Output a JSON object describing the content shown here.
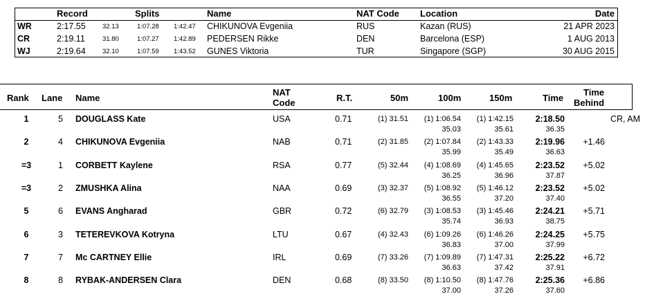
{
  "records": {
    "headers": {
      "record": "Record",
      "splits": "Splits",
      "name": "Name",
      "nat": "NAT Code",
      "location": "Location",
      "date": "Date"
    },
    "rows": [
      {
        "code": "WR",
        "time": "2:17.55",
        "s1": "32.13",
        "s2": "1:07.28",
        "s3": "1:42.47",
        "name": "CHIKUNOVA Evgeniia",
        "nat": "RUS",
        "location": "Kazan (RUS)",
        "date": "21 APR 2023"
      },
      {
        "code": "CR",
        "time": "2:19.11",
        "s1": "31.80",
        "s2": "1:07.27",
        "s3": "1:42.89",
        "name": "PEDERSEN Rikke",
        "nat": "DEN",
        "location": "Barcelona (ESP)",
        "date": "1 AUG 2013"
      },
      {
        "code": "WJ",
        "time": "2:19.64",
        "s1": "32.10",
        "s2": "1:07.59",
        "s3": "1:43.52",
        "name": "GUNES Viktoria",
        "nat": "TUR",
        "location": "Singapore (SGP)",
        "date": "30 AUG 2015"
      }
    ]
  },
  "results": {
    "headers": {
      "rank": "Rank",
      "lane": "Lane",
      "name": "Name",
      "nat1": "NAT",
      "nat2": "Code",
      "rt": "R.T.",
      "m50": "50m",
      "m100": "100m",
      "m150": "150m",
      "time": "Time",
      "behind1": "Time",
      "behind2": "Behind"
    },
    "rows": [
      {
        "rank": "1",
        "lane": "5",
        "name": "DOUGLASS Kate",
        "nat": "USA",
        "rt": "0.71",
        "s50": "(1) 31.51",
        "s100": "(1) 1:06.54",
        "s100b": "35.03",
        "s150": "(1) 1:42.15",
        "s150b": "35.61",
        "time": "2:18.50",
        "timeb": "36.35",
        "behind": "",
        "note": "CR, AM"
      },
      {
        "rank": "2",
        "lane": "4",
        "name": "CHIKUNOVA Evgeniia",
        "nat": "NAB",
        "rt": "0.71",
        "s50": "(2) 31.85",
        "s100": "(2) 1:07.84",
        "s100b": "35.99",
        "s150": "(2) 1:43.33",
        "s150b": "35.49",
        "time": "2:19.96",
        "timeb": "36.63",
        "behind": "+1.46",
        "note": ""
      },
      {
        "rank": "=3",
        "lane": "1",
        "name": "CORBETT Kaylene",
        "nat": "RSA",
        "rt": "0.77",
        "s50": "(5) 32.44",
        "s100": "(4) 1:08.69",
        "s100b": "36.25",
        "s150": "(4) 1:45.65",
        "s150b": "36.96",
        "time": "2:23.52",
        "timeb": "37.87",
        "behind": "+5.02",
        "note": ""
      },
      {
        "rank": "=3",
        "lane": "2",
        "name": "ZMUSHKA Alina",
        "nat": "NAA",
        "rt": "0.69",
        "s50": "(3) 32.37",
        "s100": "(5) 1:08.92",
        "s100b": "36.55",
        "s150": "(5) 1:46.12",
        "s150b": "37.20",
        "time": "2:23.52",
        "timeb": "37.40",
        "behind": "+5.02",
        "note": ""
      },
      {
        "rank": "5",
        "lane": "6",
        "name": "EVANS Angharad",
        "nat": "GBR",
        "rt": "0.72",
        "s50": "(6) 32.79",
        "s100": "(3) 1:08.53",
        "s100b": "35.74",
        "s150": "(3) 1:45.46",
        "s150b": "36.93",
        "time": "2:24.21",
        "timeb": "38.75",
        "behind": "+5.71",
        "note": ""
      },
      {
        "rank": "6",
        "lane": "3",
        "name": "TETEREVKOVA Kotryna",
        "nat": "LTU",
        "rt": "0.67",
        "s50": "(4) 32.43",
        "s100": "(6) 1:09.26",
        "s100b": "36.83",
        "s150": "(6) 1:46.26",
        "s150b": "37.00",
        "time": "2:24.25",
        "timeb": "37.99",
        "behind": "+5.75",
        "note": ""
      },
      {
        "rank": "7",
        "lane": "7",
        "name": "Mc CARTNEY Ellie",
        "nat": "IRL",
        "rt": "0.69",
        "s50": "(7) 33.26",
        "s100": "(7) 1:09.89",
        "s100b": "36.63",
        "s150": "(7) 1:47.31",
        "s150b": "37.42",
        "time": "2:25.22",
        "timeb": "37.91",
        "behind": "+6.72",
        "note": ""
      },
      {
        "rank": "8",
        "lane": "8",
        "name": "RYBAK-ANDERSEN Clara",
        "nat": "DEN",
        "rt": "0.68",
        "s50": "(8) 33.50",
        "s100": "(8) 1:10.50",
        "s100b": "37.00",
        "s150": "(8) 1:47.76",
        "s150b": "37.26",
        "time": "2:25.36",
        "timeb": "37.60",
        "behind": "+6.86",
        "note": ""
      }
    ]
  }
}
